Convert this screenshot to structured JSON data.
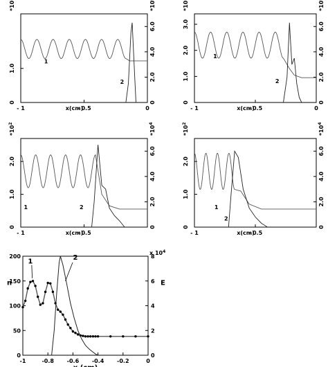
{
  "chart_data": [
    {
      "type": "line",
      "panel": 1,
      "xlabel": "x(cm)",
      "x_ticks": [
        "- 1",
        "- 0.5",
        "0"
      ],
      "left_ticks": [
        "0",
        "1.0"
      ],
      "left_scale": "*10",
      "left_scale_exp": "2",
      "right_ticks": [
        "0",
        "2.0",
        "4.0",
        "6.0"
      ],
      "right_scale": "*10",
      "right_scale_exp": "4",
      "ylim_left": [
        0,
        2.6
      ],
      "ylim_right": [
        0,
        7.0
      ],
      "xlim": [
        -1,
        0
      ],
      "wave": {
        "center": 1.57,
        "amp": 0.28,
        "cycles": 6.5,
        "x_end": -0.17,
        "tail": 1.22
      },
      "series": [
        {
          "label": "1",
          "x": [
            -1,
            -0.17,
            -0.14,
            0
          ],
          "y": [
            1.57,
            1.4,
            1.22,
            1.22
          ]
        },
        {
          "label": "2",
          "x": [
            -0.17,
            -0.15,
            -0.13,
            -0.12,
            -0.1,
            -0.09
          ],
          "y": [
            0,
            1.5,
            5.5,
            6.3,
            2.0,
            0
          ]
        }
      ],
      "annotations": [
        {
          "text": "1",
          "x": -0.8,
          "y": 1.15
        },
        {
          "text": "2",
          "x": -0.2,
          "y": 0.55
        }
      ]
    },
    {
      "type": "line",
      "panel": 2,
      "xlabel": "x(cm)",
      "x_ticks": [
        "- 1",
        "- 0.5",
        "0"
      ],
      "left_ticks": [
        "0",
        "1.0",
        "2.0",
        "3.0"
      ],
      "left_scale": "*10",
      "left_scale_exp": "2",
      "right_ticks": [
        "0",
        "2.0",
        "4.0",
        "6.0"
      ],
      "right_scale": "*10",
      "right_scale_exp": "4",
      "ylim_left": [
        0,
        3.4
      ],
      "ylim_right": [
        0,
        7.0
      ],
      "xlim": [
        -1,
        0
      ],
      "wave": {
        "center": 2.2,
        "amp": 0.5,
        "cycles": 5.5,
        "x_end": -0.27,
        "tail": 0.95
      },
      "series": [
        {
          "label": "1",
          "x": [
            -1,
            -0.27,
            -0.22,
            -0.18,
            -0.12,
            0
          ],
          "y": [
            2.2,
            1.9,
            1.3,
            1.05,
            0.95,
            0.95
          ]
        },
        {
          "label": "2",
          "x": [
            -0.27,
            -0.24,
            -0.22,
            -0.2,
            -0.18,
            -0.16,
            -0.14,
            -0.12
          ],
          "y": [
            0,
            2.0,
            6.3,
            3.0,
            3.5,
            1.5,
            0.4,
            0
          ]
        }
      ],
      "annotations": [
        {
          "text": "1",
          "x": -0.83,
          "y": 1.7
        },
        {
          "text": "2",
          "x": -0.32,
          "y": 0.75
        }
      ]
    },
    {
      "type": "line",
      "panel": 3,
      "xlabel": "x(cm)",
      "x_ticks": [
        "- 1",
        "- 0.5"
      ],
      "left_ticks": [
        "0",
        "1.0",
        "2.0"
      ],
      "left_scale": "*10",
      "left_scale_exp": "2",
      "right_ticks": [
        "0",
        "2.0",
        "4.0",
        "6.0"
      ],
      "right_scale": "*10",
      "right_scale_exp": "4",
      "ylim_left": [
        0,
        2.7
      ],
      "ylim_right": [
        0,
        7.0
      ],
      "xlim": [
        -1,
        0
      ],
      "wave": {
        "center": 1.7,
        "amp": 0.5,
        "cycles": 5.0,
        "x_end": -0.41,
        "tail": 0.55
      },
      "series": [
        {
          "label": "1",
          "x": [
            -1,
            -0.41,
            -0.36,
            -0.3,
            -0.22,
            0
          ],
          "y": [
            1.7,
            1.5,
            1.0,
            0.65,
            0.55,
            0.55
          ]
        },
        {
          "label": "2",
          "x": [
            -0.44,
            -0.42,
            -0.39,
            -0.36,
            -0.33,
            -0.3,
            -0.26,
            -0.22,
            -0.18
          ],
          "y": [
            0,
            2.0,
            6.5,
            3.3,
            3.0,
            1.5,
            0.9,
            0.5,
            0
          ]
        }
      ],
      "annotations": [
        {
          "text": "1",
          "x": -0.96,
          "y": 0.55
        },
        {
          "text": "2",
          "x": -0.52,
          "y": 0.55
        }
      ]
    },
    {
      "type": "line",
      "panel": 4,
      "xlabel": "x(cm)",
      "x_ticks": [
        "- 1",
        "- 0.5"
      ],
      "left_ticks": [
        "0",
        "1.0",
        "2.0"
      ],
      "left_scale": "*10",
      "left_scale_exp": "2",
      "right_ticks": [
        "0",
        "2.0",
        "4.0",
        "6.0"
      ],
      "right_scale": "*10",
      "right_scale_exp": "4",
      "ylim_left": [
        0,
        2.7
      ],
      "ylim_right": [
        0,
        7.0
      ],
      "xlim": [
        -1,
        0
      ],
      "wave": {
        "center": 1.7,
        "amp": 0.55,
        "cycles": 3.5,
        "x_end": -0.67,
        "tail": 0.55
      },
      "series": [
        {
          "label": "1",
          "x": [
            -1,
            -0.67,
            -0.62,
            -0.55,
            -0.45,
            0
          ],
          "y": [
            1.7,
            1.6,
            1.1,
            0.7,
            0.55,
            0.55
          ]
        },
        {
          "label": "2",
          "x": [
            -0.72,
            -0.7,
            -0.67,
            -0.64,
            -0.6,
            -0.55,
            -0.5,
            -0.45,
            -0.4
          ],
          "y": [
            0,
            2.5,
            6.0,
            5.5,
            3.0,
            1.5,
            0.8,
            0.3,
            0
          ]
        }
      ],
      "annotations": [
        {
          "text": "1",
          "x": -0.82,
          "y": 0.55
        },
        {
          "text": "2",
          "x": -0.74,
          "y": 0.2
        }
      ]
    },
    {
      "type": "line",
      "panel": 5,
      "xlabel": "x (cm)",
      "ylabel_left": "n",
      "ylabel_right": "E",
      "x_ticks": [
        "-1",
        "-0.8",
        "-0.6",
        "-0.4",
        "-0.2",
        "0"
      ],
      "left_ticks": [
        "0",
        "50",
        "100",
        "150",
        "200"
      ],
      "right_ticks": [
        "0",
        "2",
        "4",
        "6",
        "8"
      ],
      "right_scale": "x 10",
      "right_scale_exp": "4",
      "ylim_left": [
        0,
        200
      ],
      "ylim_right": [
        0,
        8
      ],
      "xlim": [
        -1,
        0
      ],
      "series": [
        {
          "label": "1",
          "marker": "dot",
          "x": [
            -1,
            -0.98,
            -0.96,
            -0.94,
            -0.92,
            -0.9,
            -0.88,
            -0.86,
            -0.84,
            -0.82,
            -0.8,
            -0.78,
            -0.76,
            -0.74,
            -0.72,
            -0.7,
            -0.68,
            -0.66,
            -0.64,
            -0.62,
            -0.6,
            -0.58,
            -0.56,
            -0.54,
            -0.52,
            -0.5,
            -0.48,
            -0.46,
            -0.44,
            -0.42,
            -0.4,
            -0.3,
            -0.2,
            -0.1,
            0
          ],
          "y": [
            97,
            110,
            135,
            148,
            150,
            140,
            118,
            102,
            105,
            128,
            146,
            145,
            128,
            105,
            92,
            88,
            82,
            72,
            62,
            55,
            48,
            45,
            42,
            40,
            39,
            38,
            38,
            38,
            38,
            38,
            38,
            38,
            38,
            38,
            38
          ]
        },
        {
          "label": "2",
          "x": [
            -0.77,
            -0.75,
            -0.73,
            -0.71,
            -0.7,
            -0.68,
            -0.65,
            -0.62,
            -0.59,
            -0.56,
            -0.53,
            -0.5,
            -0.47,
            -0.44,
            -0.42,
            -0.4
          ],
          "y": [
            0,
            2,
            5,
            7.5,
            8,
            7.3,
            5.8,
            4.2,
            3.0,
            2.0,
            1.3,
            0.8,
            0.5,
            0.25,
            0.1,
            0
          ]
        }
      ],
      "annotations": [
        {
          "text": "1",
          "x": -0.94,
          "y": 185
        },
        {
          "text": "2",
          "x": -0.58,
          "y": 193
        }
      ]
    }
  ]
}
